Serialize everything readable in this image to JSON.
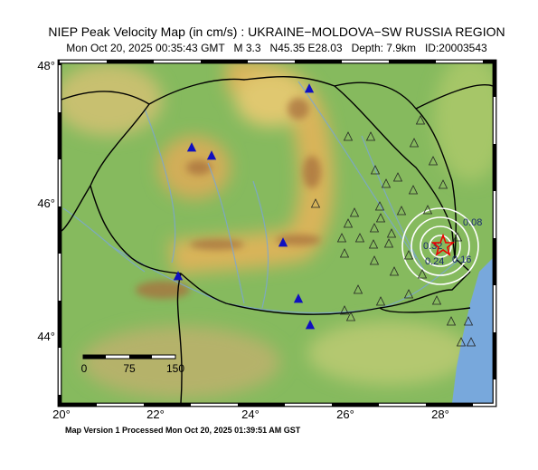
{
  "header": {
    "title": "NIEP Peak Velocity Map (in cm/s) : UKRAINE−MOLDOVA−SW RUSSIA REGION",
    "subtitle": "Mon Oct 20, 2025 00:35:43 GMT   M 3.3   N45.35 E28.03   Depth: 7.9km   ID:20003543"
  },
  "map": {
    "x_tick_labels": [
      "20°",
      "22°",
      "24°",
      "26°",
      "28°"
    ],
    "y_tick_labels": [
      "48°",
      "46°",
      "44°"
    ],
    "contour_labels": [
      "0.32",
      "0.24",
      "0.16",
      "0.08"
    ],
    "scale_labels": [
      "0",
      "75",
      "150"
    ]
  },
  "footer": "Map Version 1 Processed Mon Oct 20, 2025 01:39:51 AM GST"
}
